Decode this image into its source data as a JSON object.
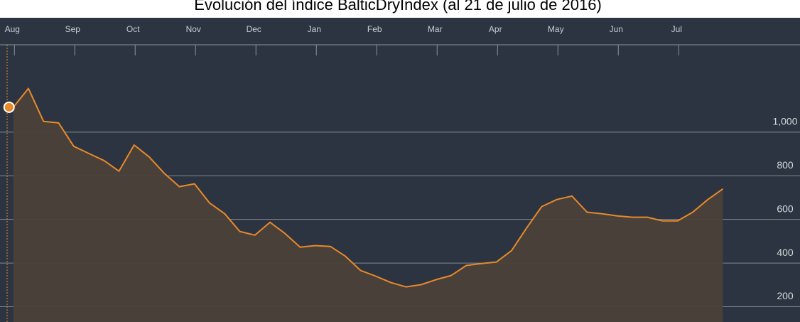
{
  "chart_data": {
    "type": "line",
    "title": "Evolución del índice BalticDryIndex (al 21 de julio de 2016)",
    "categories": [
      "Aug",
      null,
      null,
      null,
      "Sep",
      null,
      null,
      null,
      "Oct",
      null,
      null,
      null,
      "Nov",
      null,
      null,
      null,
      "Dec",
      null,
      null,
      null,
      "Jan",
      null,
      null,
      null,
      "Feb",
      null,
      null,
      null,
      "Mar",
      null,
      null,
      null,
      "Apr",
      null,
      null,
      null,
      "May",
      null,
      null,
      null,
      "Jun",
      null,
      null,
      null,
      "Jul",
      null,
      null,
      null
    ],
    "series": [
      {
        "name": "BalticDryIndex",
        "color": "#e8892b",
        "values": [
          1114,
          1200,
          1049,
          1042,
          935,
          902,
          870,
          821,
          941,
          886,
          811,
          750,
          763,
          675,
          626,
          545,
          528,
          587,
          535,
          473,
          480,
          476,
          431,
          366,
          340,
          311,
          291,
          301,
          324,
          343,
          389,
          398,
          405,
          457,
          561,
          659,
          691,
          707,
          633,
          626,
          616,
          610,
          610,
          593,
          593,
          633,
          691,
          740
        ]
      }
    ],
    "ylim": [
      130,
      1400
    ],
    "yticks": [
      200,
      400,
      600,
      800,
      {
        "value": 1000,
        "label": "1,000"
      }
    ],
    "grid": true
  }
}
